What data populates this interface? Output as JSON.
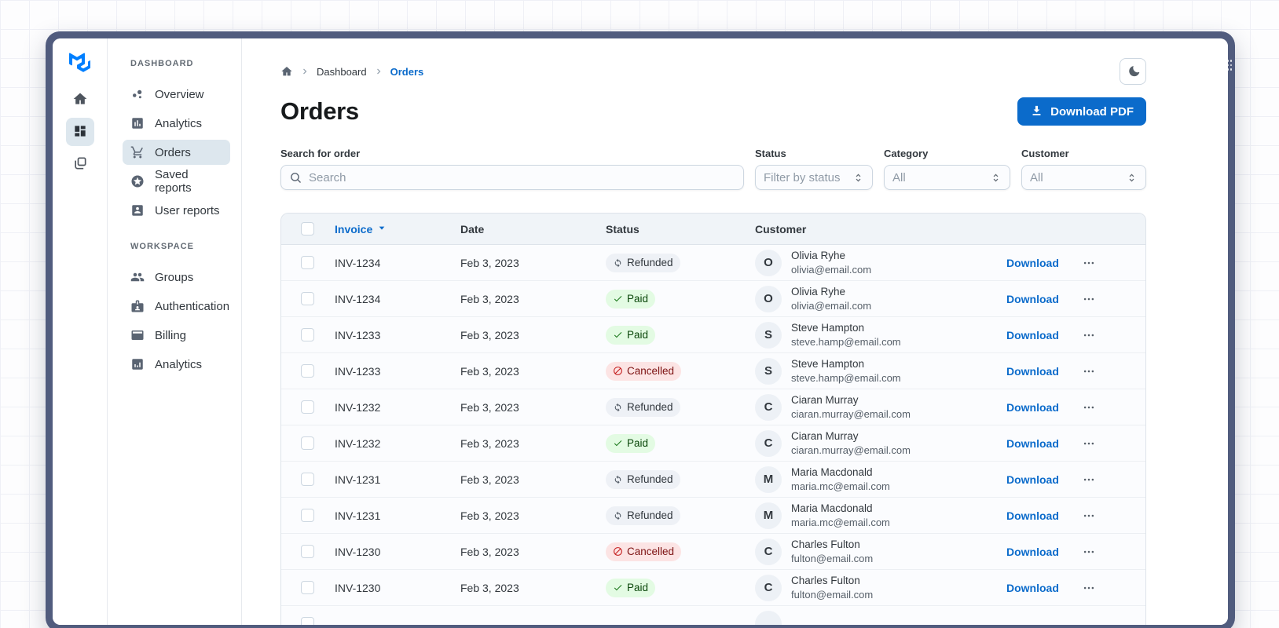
{
  "colors": {
    "primary": "#0b6bcb",
    "brand_logo": "#007FFF",
    "frame": "#515c7e",
    "nav_selected_bg": "#dde7ee",
    "table_header_bg": "#f0f4f8",
    "chip_paid_bg": "#e3fbe3",
    "chip_paid_text": "#0a470a",
    "chip_cancelled_bg": "#fce4e4",
    "chip_cancelled_text": "#7d1212",
    "chip_refunded_bg": "#eef1f6",
    "chip_refunded_text": "#32383e"
  },
  "rail": {
    "items": [
      {
        "icon": "home-icon",
        "selected": false
      },
      {
        "icon": "dashboard-grid-icon",
        "selected": true
      },
      {
        "icon": "layers-icon",
        "selected": false
      }
    ]
  },
  "sidebar": {
    "sections": [
      {
        "heading": "DASHBOARD",
        "items": [
          {
            "label": "Overview",
            "icon": "scatter-icon",
            "selected": false
          },
          {
            "label": "Analytics",
            "icon": "bar-chart-icon",
            "selected": false
          },
          {
            "label": "Orders",
            "icon": "cart-icon",
            "selected": true
          },
          {
            "label": "Saved reports",
            "icon": "star-circle-icon",
            "selected": false
          },
          {
            "label": "User reports",
            "icon": "user-card-icon",
            "selected": false
          }
        ]
      },
      {
        "heading": "WORKSPACE",
        "items": [
          {
            "label": "Groups",
            "icon": "people-icon",
            "selected": false
          },
          {
            "label": "Authentication",
            "icon": "badge-icon",
            "selected": false
          },
          {
            "label": "Billing",
            "icon": "credit-card-icon",
            "selected": false
          },
          {
            "label": "Analytics",
            "icon": "analytics-icon",
            "selected": false
          }
        ]
      }
    ]
  },
  "breadcrumb": {
    "items": [
      "Dashboard",
      "Orders"
    ]
  },
  "page": {
    "title": "Orders"
  },
  "actions": {
    "download_pdf": "Download PDF"
  },
  "filters": {
    "search": {
      "label": "Search for order",
      "placeholder": "Search"
    },
    "selects": [
      {
        "label": "Status",
        "value": "Filter by status"
      },
      {
        "label": "Category",
        "value": "All"
      },
      {
        "label": "Customer",
        "value": "All"
      }
    ]
  },
  "table": {
    "columns": [
      "Invoice",
      "Date",
      "Status",
      "Customer"
    ],
    "sort_column": "Invoice",
    "download_label": "Download",
    "rows": [
      {
        "invoice": "INV-1234",
        "date": "Feb 3, 2023",
        "status": "Refunded",
        "status_type": "neutral",
        "initial": "O",
        "name": "Olivia Ryhe",
        "email": "olivia@email.com"
      },
      {
        "invoice": "INV-1234",
        "date": "Feb 3, 2023",
        "status": "Paid",
        "status_type": "success",
        "initial": "O",
        "name": "Olivia Ryhe",
        "email": "olivia@email.com"
      },
      {
        "invoice": "INV-1233",
        "date": "Feb 3, 2023",
        "status": "Paid",
        "status_type": "success",
        "initial": "S",
        "name": "Steve Hampton",
        "email": "steve.hamp@email.com"
      },
      {
        "invoice": "INV-1233",
        "date": "Feb 3, 2023",
        "status": "Cancelled",
        "status_type": "danger",
        "initial": "S",
        "name": "Steve Hampton",
        "email": "steve.hamp@email.com"
      },
      {
        "invoice": "INV-1232",
        "date": "Feb 3, 2023",
        "status": "Refunded",
        "status_type": "neutral",
        "initial": "C",
        "name": "Ciaran Murray",
        "email": "ciaran.murray@email.com"
      },
      {
        "invoice": "INV-1232",
        "date": "Feb 3, 2023",
        "status": "Paid",
        "status_type": "success",
        "initial": "C",
        "name": "Ciaran Murray",
        "email": "ciaran.murray@email.com"
      },
      {
        "invoice": "INV-1231",
        "date": "Feb 3, 2023",
        "status": "Refunded",
        "status_type": "neutral",
        "initial": "M",
        "name": "Maria Macdonald",
        "email": "maria.mc@email.com"
      },
      {
        "invoice": "INV-1231",
        "date": "Feb 3, 2023",
        "status": "Refunded",
        "status_type": "neutral",
        "initial": "M",
        "name": "Maria Macdonald",
        "email": "maria.mc@email.com"
      },
      {
        "invoice": "INV-1230",
        "date": "Feb 3, 2023",
        "status": "Cancelled",
        "status_type": "danger",
        "initial": "C",
        "name": "Charles Fulton",
        "email": "fulton@email.com"
      },
      {
        "invoice": "INV-1230",
        "date": "Feb 3, 2023",
        "status": "Paid",
        "status_type": "success",
        "initial": "C",
        "name": "Charles Fulton",
        "email": "fulton@email.com"
      }
    ],
    "partial_row_visible": true
  }
}
